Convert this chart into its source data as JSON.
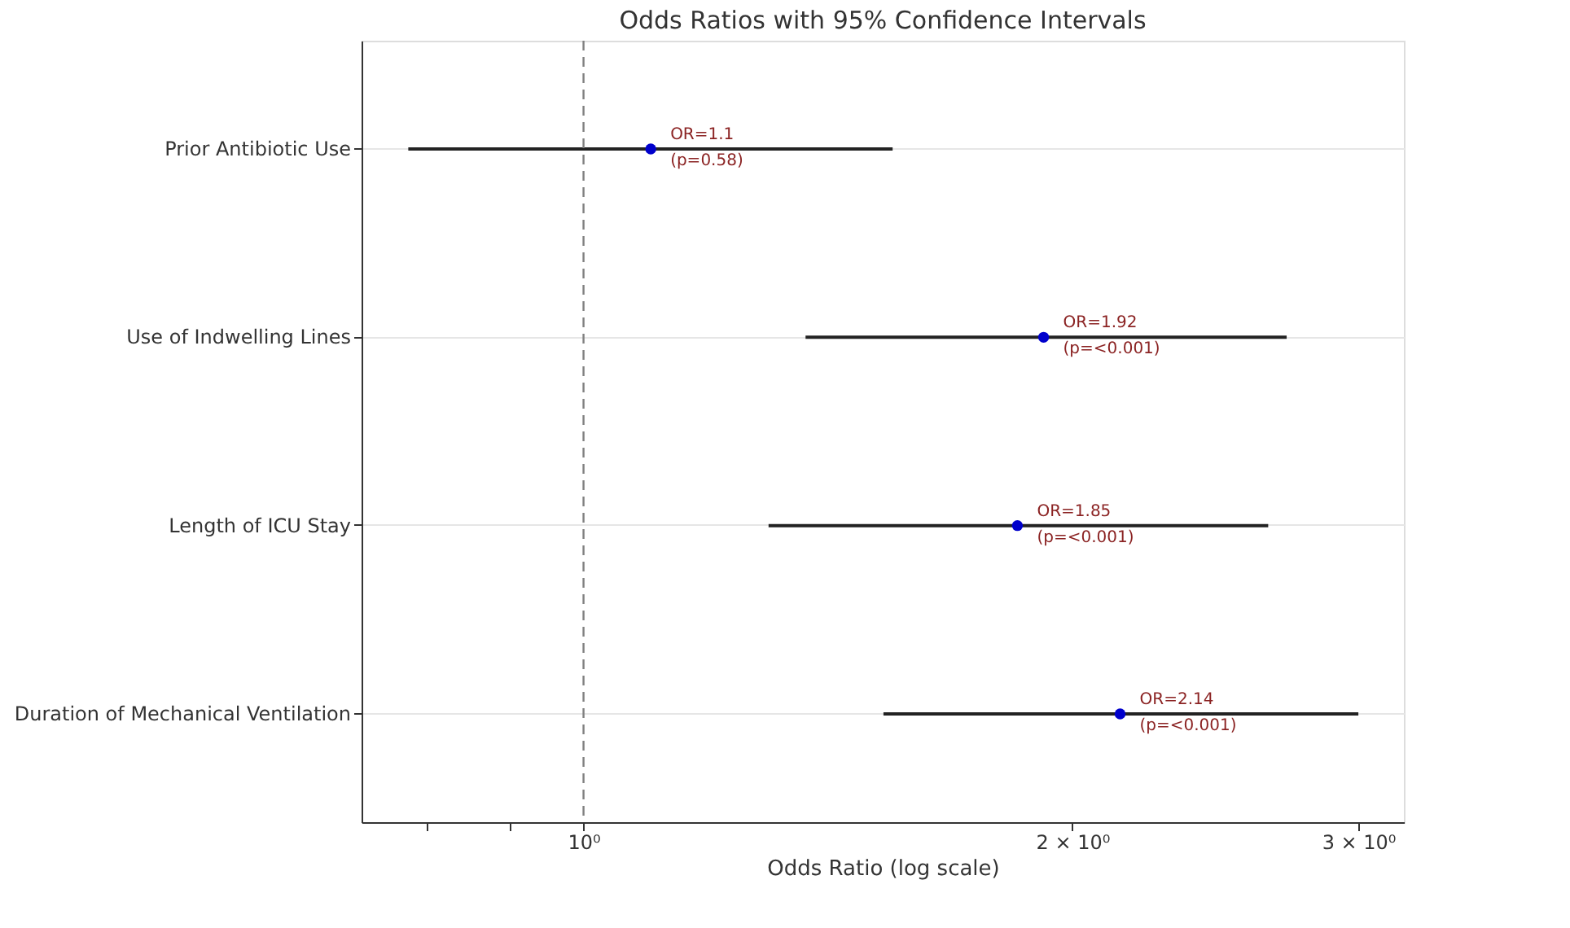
{
  "chart_data": {
    "type": "scatter",
    "orientation": "horizontal",
    "title": "Odds Ratios with 95% Confidence Intervals",
    "xlabel": "Odds Ratio (log scale)",
    "categories": [
      "Prior Antibiotic Use",
      "Use of Indwelling Lines",
      "Length of ICU Stay",
      "Duration of Mechanical Ventilation"
    ],
    "series": [
      {
        "color": "#0000cc",
        "values": [
          1.1,
          1.92,
          1.85,
          2.14
        ],
        "errors": [
          [
            0.78,
            1.55
          ],
          [
            1.37,
            2.71
          ],
          [
            1.3,
            2.64
          ],
          [
            1.53,
            3.0
          ]
        ],
        "value_labels": [
          "OR=1.1\n(p=0.58)",
          "OR=1.92\n(p=<0.001)",
          "OR=1.85\n(p=<0.001)",
          "OR=2.14\n(p=<0.001)"
        ]
      }
    ],
    "log": "x",
    "xlim": [
      0.73,
      3.2
    ],
    "xticks": [
      {
        "value": 0.8,
        "label": null
      },
      {
        "value": 0.9,
        "label": null
      },
      {
        "value": 1,
        "label": "10⁰"
      },
      {
        "value": 2,
        "label": "2 × 10⁰"
      },
      {
        "value": 3,
        "label": "3 × 10⁰"
      }
    ],
    "ref_lines": [
      {
        "axis": "x",
        "value": 1,
        "color": "#808080",
        "line_style": "dashed"
      }
    ],
    "grid": "y",
    "marker": "circle"
  }
}
